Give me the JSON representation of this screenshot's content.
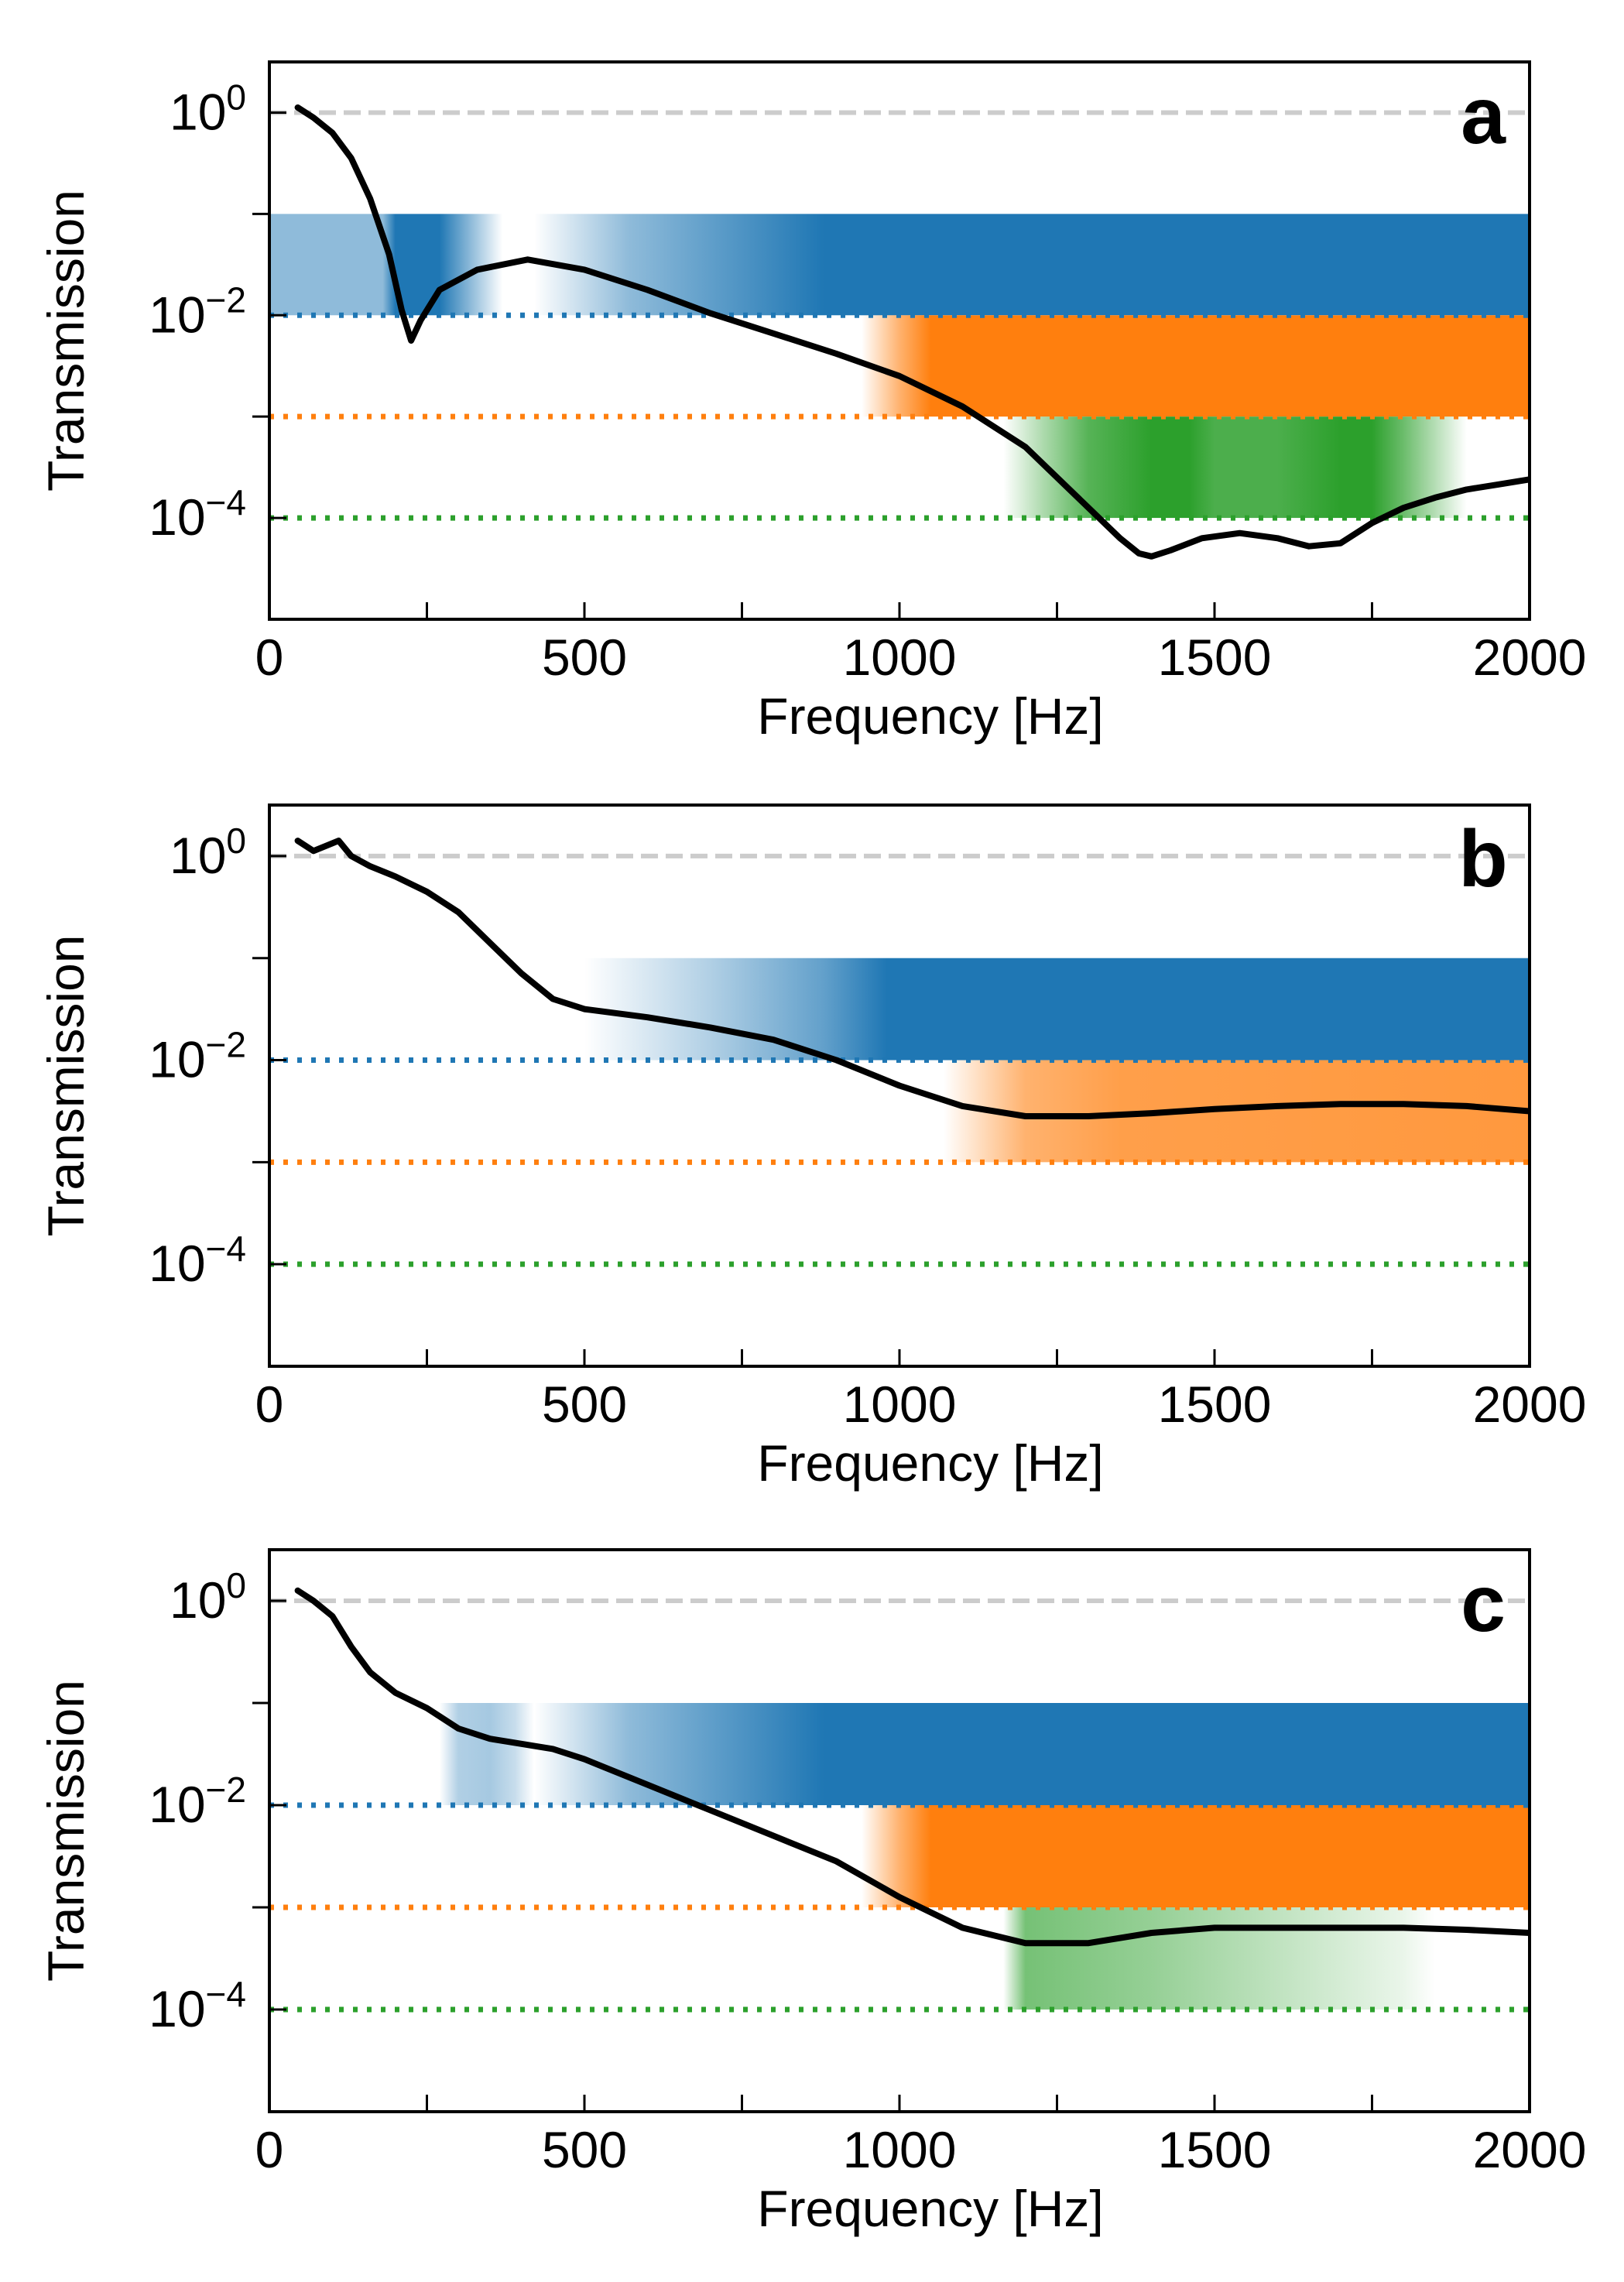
{
  "chart_data": [
    {
      "type": "line",
      "panel_label": "a",
      "xlabel": "Frequency [Hz]",
      "ylabel": "Transmission",
      "xlim": [
        0,
        2000
      ],
      "ylim_log10": [
        -5.0,
        0.5
      ],
      "x_ticks": [
        0,
        500,
        1000,
        1500,
        2000
      ],
      "x_tick_labels": [
        "0",
        "500",
        "1000",
        "1500",
        "2000"
      ],
      "y_tick_labels": [
        {
          "exp": 0,
          "base": "10",
          "power": "0"
        },
        {
          "exp": -2,
          "base": "10",
          "power": "−2"
        },
        {
          "exp": -4,
          "base": "10",
          "power": "−4"
        }
      ],
      "y_minor_ticks_exp": [
        -1,
        -3
      ],
      "reference_lines": [
        {
          "level_exp": 0,
          "color": "#cccccc",
          "style": "dashed"
        },
        {
          "level_exp": -2,
          "color": "#1f77b4",
          "style": "dotted"
        },
        {
          "level_exp": -3,
          "color": "#ff7f0e",
          "style": "dotted"
        },
        {
          "level_exp": -4,
          "color": "#2ca02c",
          "style": "dotted"
        }
      ],
      "bands": [
        {
          "color": "#1f77b4",
          "y_exp": [
            -2,
            -1
          ],
          "opacity_stops": [
            [
              180,
              0.5
            ],
            [
              200,
              1
            ],
            [
              270,
              1
            ],
            [
              370,
              0
            ],
            [
              420,
              0
            ],
            [
              570,
              0.5
            ],
            [
              880,
              1
            ],
            [
              2000,
              1
            ]
          ]
        },
        {
          "color": "#ff7f0e",
          "y_exp": [
            -3,
            -2
          ],
          "opacity_stops": [
            [
              940,
              0
            ],
            [
              1000,
              0.6
            ],
            [
              1050,
              1
            ],
            [
              2000,
              1
            ]
          ]
        },
        {
          "color": "#2ca02c",
          "y_exp": [
            -4,
            -3
          ],
          "opacity_stops": [
            [
              1165,
              0
            ],
            [
              1230,
              0.4
            ],
            [
              1300,
              0.8
            ],
            [
              1400,
              1
            ],
            [
              1460,
              1
            ],
            [
              1500,
              0.85
            ],
            [
              1600,
              0.85
            ],
            [
              1700,
              1
            ],
            [
              1750,
              1
            ],
            [
              1800,
              0.7
            ],
            [
              1900,
              0
            ]
          ]
        }
      ],
      "series": [
        {
          "name": "transmission",
          "color": "#000000",
          "x": [
            45,
            70,
            100,
            130,
            160,
            190,
            210,
            225,
            240,
            270,
            330,
            410,
            500,
            600,
            700,
            800,
            900,
            1000,
            1100,
            1200,
            1300,
            1350,
            1380,
            1400,
            1430,
            1480,
            1540,
            1600,
            1650,
            1700,
            1750,
            1800,
            1850,
            1900,
            1950,
            2000
          ],
          "y_log10": [
            0.05,
            -0.05,
            -0.2,
            -0.45,
            -0.85,
            -1.4,
            -1.95,
            -2.25,
            -2.05,
            -1.75,
            -1.55,
            -1.45,
            -1.55,
            -1.75,
            -1.98,
            -2.18,
            -2.38,
            -2.6,
            -2.9,
            -3.3,
            -3.9,
            -4.2,
            -4.35,
            -4.38,
            -4.32,
            -4.2,
            -4.15,
            -4.2,
            -4.28,
            -4.25,
            -4.05,
            -3.9,
            -3.8,
            -3.72,
            -3.67,
            -3.62
          ]
        }
      ]
    },
    {
      "type": "line",
      "panel_label": "b",
      "xlabel": "Frequency [Hz]",
      "ylabel": "Transmission",
      "xlim": [
        0,
        2000
      ],
      "ylim_log10": [
        -5.0,
        0.5
      ],
      "x_ticks": [
        0,
        500,
        1000,
        1500,
        2000
      ],
      "x_tick_labels": [
        "0",
        "500",
        "1000",
        "1500",
        "2000"
      ],
      "y_tick_labels": [
        {
          "exp": 0,
          "base": "10",
          "power": "0"
        },
        {
          "exp": -2,
          "base": "10",
          "power": "−2"
        },
        {
          "exp": -4,
          "base": "10",
          "power": "−4"
        }
      ],
      "y_minor_ticks_exp": [
        -1,
        -3
      ],
      "reference_lines": [
        {
          "level_exp": 0,
          "color": "#cccccc",
          "style": "dashed"
        },
        {
          "level_exp": -2,
          "color": "#1f77b4",
          "style": "dotted"
        },
        {
          "level_exp": -3,
          "color": "#ff7f0e",
          "style": "dotted"
        },
        {
          "level_exp": -4,
          "color": "#2ca02c",
          "style": "dotted"
        }
      ],
      "bands": [
        {
          "color": "#1f77b4",
          "y_exp": [
            -2,
            -1
          ],
          "opacity_stops": [
            [
              500,
              0
            ],
            [
              700,
              0.35
            ],
            [
              880,
              0.7
            ],
            [
              980,
              1
            ],
            [
              2000,
              1
            ]
          ]
        },
        {
          "color": "#ff7f0e",
          "y_exp": [
            -3,
            -2
          ],
          "opacity_stops": [
            [
              1070,
              0
            ],
            [
              1200,
              0.6
            ],
            [
              1350,
              0.75
            ],
            [
              2000,
              0.8
            ]
          ]
        }
      ],
      "series": [
        {
          "name": "transmission",
          "color": "#000000",
          "x": [
            45,
            70,
            90,
            110,
            130,
            160,
            200,
            250,
            300,
            350,
            400,
            450,
            500,
            600,
            700,
            800,
            900,
            1000,
            1100,
            1200,
            1300,
            1400,
            1500,
            1600,
            1700,
            1800,
            1900,
            2000
          ],
          "y_log10": [
            0.15,
            0.05,
            0.1,
            0.15,
            0.0,
            -0.1,
            -0.2,
            -0.35,
            -0.55,
            -0.85,
            -1.15,
            -1.4,
            -1.5,
            -1.58,
            -1.68,
            -1.8,
            -2.0,
            -2.25,
            -2.45,
            -2.55,
            -2.55,
            -2.52,
            -2.48,
            -2.45,
            -2.43,
            -2.43,
            -2.45,
            -2.5
          ]
        }
      ]
    },
    {
      "type": "line",
      "panel_label": "c",
      "xlabel": "Frequency [Hz]",
      "ylabel": "Transmission",
      "xlim": [
        0,
        2000
      ],
      "ylim_log10": [
        -5.0,
        0.5
      ],
      "x_ticks": [
        0,
        500,
        1000,
        1500,
        2000
      ],
      "x_tick_labels": [
        "0",
        "500",
        "1000",
        "1500",
        "2000"
      ],
      "y_tick_labels": [
        {
          "exp": 0,
          "base": "10",
          "power": "0"
        },
        {
          "exp": -2,
          "base": "10",
          "power": "−2"
        },
        {
          "exp": -4,
          "base": "10",
          "power": "−4"
        }
      ],
      "y_minor_ticks_exp": [
        -1,
        -3
      ],
      "reference_lines": [
        {
          "level_exp": 0,
          "color": "#cccccc",
          "style": "dashed"
        },
        {
          "level_exp": -2,
          "color": "#1f77b4",
          "style": "dotted"
        },
        {
          "level_exp": -3,
          "color": "#ff7f0e",
          "style": "dotted"
        },
        {
          "level_exp": -4,
          "color": "#2ca02c",
          "style": "dotted"
        }
      ],
      "bands": [
        {
          "color": "#1f77b4",
          "y_exp": [
            -2,
            -1
          ],
          "opacity_stops": [
            [
              270,
              0
            ],
            [
              300,
              0.35
            ],
            [
              350,
              0.4
            ],
            [
              390,
              0.25
            ],
            [
              420,
              0
            ],
            [
              570,
              0.5
            ],
            [
              880,
              1
            ],
            [
              2000,
              1
            ]
          ]
        },
        {
          "color": "#ff7f0e",
          "y_exp": [
            -3,
            -2
          ],
          "opacity_stops": [
            [
              940,
              0
            ],
            [
              1000,
              0.6
            ],
            [
              1050,
              1
            ],
            [
              2000,
              1
            ]
          ]
        },
        {
          "color": "#2ca02c",
          "y_exp": [
            -4,
            -3
          ],
          "opacity_stops": [
            [
              1165,
              0
            ],
            [
              1200,
              0.65
            ],
            [
              1400,
              0.5
            ],
            [
              1600,
              0.3
            ],
            [
              1800,
              0.1
            ],
            [
              1850,
              0
            ]
          ]
        }
      ],
      "series": [
        {
          "name": "transmission",
          "color": "#000000",
          "x": [
            45,
            70,
            100,
            130,
            160,
            200,
            250,
            300,
            350,
            400,
            450,
            500,
            600,
            700,
            800,
            900,
            1000,
            1100,
            1200,
            1300,
            1400,
            1500,
            1600,
            1700,
            1800,
            1900,
            2000
          ],
          "y_log10": [
            0.1,
            0.0,
            -0.15,
            -0.45,
            -0.7,
            -0.9,
            -1.05,
            -1.25,
            -1.35,
            -1.4,
            -1.45,
            -1.55,
            -1.8,
            -2.05,
            -2.3,
            -2.55,
            -2.9,
            -3.2,
            -3.35,
            -3.35,
            -3.25,
            -3.2,
            -3.2,
            -3.2,
            -3.2,
            -3.22,
            -3.25
          ]
        }
      ]
    }
  ]
}
